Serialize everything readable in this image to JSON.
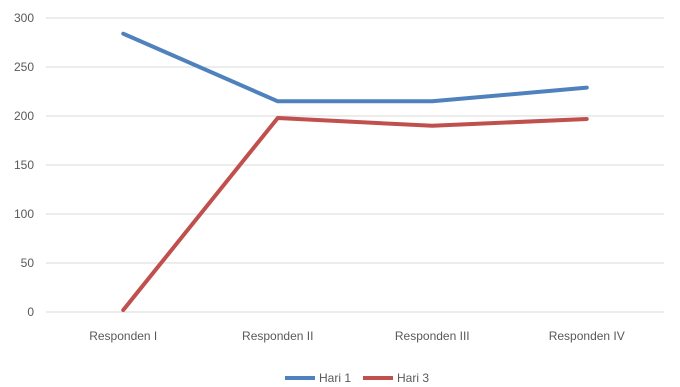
{
  "chart_data": {
    "type": "line",
    "categories": [
      "Responden I",
      "Responden II",
      "Responden III",
      "Responden IV"
    ],
    "series": [
      {
        "name": "Hari 1",
        "values": [
          284,
          215,
          215,
          229
        ],
        "color": "#4F81BD"
      },
      {
        "name": "Hari 3",
        "values": [
          2,
          198,
          190,
          197
        ],
        "color": "#C0504D"
      }
    ],
    "ylim": [
      0,
      300
    ],
    "yticks": [
      0,
      50,
      100,
      150,
      200,
      250,
      300
    ],
    "grid": true,
    "legend_position": "bottom"
  }
}
